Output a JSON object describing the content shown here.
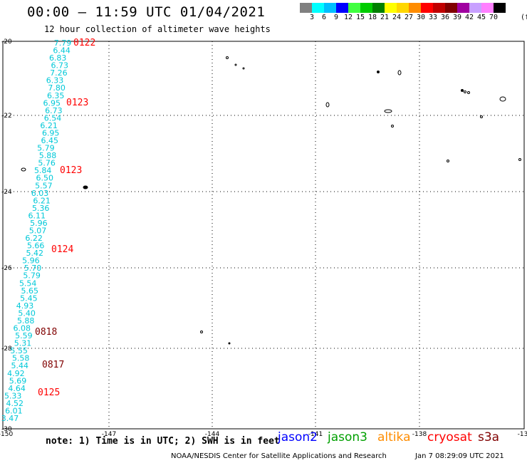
{
  "title": "00:00 – 11:59 UTC 01/04/2021",
  "subtitle": "12 hour collection of altimeter wave heights",
  "legend": {
    "unit": "(ft)",
    "colors": [
      "#808080",
      "#00ffff",
      "#00bfff",
      "#0000ff",
      "#40ff40",
      "#00cc00",
      "#008000",
      "#ffff00",
      "#ffd700",
      "#ff8c00",
      "#ff0000",
      "#c00000",
      "#800000",
      "#a000a0",
      "#c8a0ff",
      "#ff80ff",
      "#000000"
    ],
    "labels": [
      "3",
      "6",
      "9",
      "12",
      "15",
      "18",
      "21",
      "24",
      "27",
      "30",
      "33",
      "36",
      "39",
      "42",
      "45",
      "70"
    ]
  },
  "axes": {
    "lat_labels": [
      "-20",
      "-22",
      "-24",
      "-26",
      "-28",
      "-30"
    ],
    "lon_labels": [
      "-150",
      "-147",
      "-144",
      "-141",
      "-138",
      "-13"
    ]
  },
  "track_values": [
    "7.79",
    "6.44",
    "6.83",
    "6.73",
    "7.26",
    "6.33",
    "7.80",
    "6.35",
    "6.95",
    "6.73",
    "6.54",
    "6.21",
    "6.95",
    "6.45",
    "5.79",
    "5.88",
    "5.76",
    "5.84",
    "6.50",
    "5.57",
    "6.03",
    "6.21",
    "5.36",
    "6.11",
    "5.96",
    "5.07",
    "6.22",
    "5.66",
    "5.42",
    "5.96",
    "5.70",
    "5.79",
    "5.54",
    "5.65",
    "5.45",
    "4.93",
    "5.40",
    "5.88",
    "6.08",
    "5.59",
    "5.31",
    "5.55",
    "5.58",
    "5.44",
    "4.92",
    "5.69",
    "4.64",
    "5.33",
    "4.52",
    "6.01",
    "3.47"
  ],
  "time_tags": [
    {
      "label": "0122",
      "color": "#ff0000"
    },
    {
      "label": "0123",
      "color": "#ff0000"
    },
    {
      "label": "0123",
      "color": "#ff0000"
    },
    {
      "label": "0124",
      "color": "#ff0000"
    },
    {
      "label": "0818",
      "color": "#800000"
    },
    {
      "label": "0817",
      "color": "#800000"
    },
    {
      "label": "0125",
      "color": "#ff0000"
    }
  ],
  "note": "note: 1) Time is in UTC; 2) SWH is in feet",
  "satellites": [
    {
      "name": "jason2",
      "color": "#0000ff"
    },
    {
      "name": "jason3",
      "color": "#00a000"
    },
    {
      "name": "altika",
      "color": "#ff8c00"
    },
    {
      "name": "cryosat",
      "color": "#ff0000"
    },
    {
      "name": "s3a",
      "color": "#800000"
    }
  ],
  "credit": "NOAA/NESDIS Center for Satellite Applications and Research",
  "generated": "Jan  7 08:29:09 UTC 2021"
}
